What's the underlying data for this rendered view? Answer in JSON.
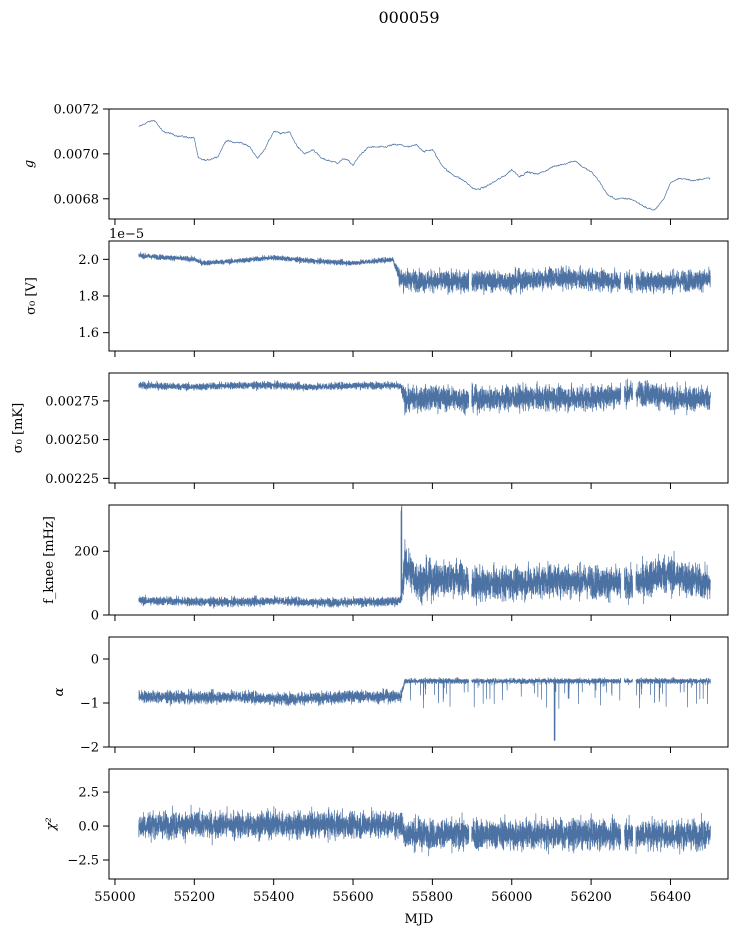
{
  "figure": {
    "title": "000059",
    "shared_xlabel": "MJD"
  },
  "chart_data": [
    {
      "type": "line",
      "id": "gain",
      "ylabel": "g",
      "offset_text": "",
      "ylim": [
        0.00671,
        0.0072
      ],
      "yticks": [
        0.0068,
        0.007,
        0.0072
      ],
      "ytick_labels": [
        "0.0068",
        "0.0070",
        "0.0072"
      ],
      "x": [
        55060,
        55080,
        55100,
        55120,
        55160,
        55200,
        55210,
        55230,
        55260,
        55280,
        55300,
        55320,
        55340,
        55360,
        55380,
        55400,
        55420,
        55440,
        55460,
        55480,
        55500,
        55520,
        55540,
        55560,
        55580,
        55600,
        55620,
        55640,
        55660,
        55680,
        55700,
        55720,
        55740,
        55760,
        55780,
        55800,
        55820,
        55840,
        55860,
        55880,
        55900,
        55910,
        55930,
        55960,
        55980,
        56000,
        56020,
        56040,
        56060,
        56080,
        56100,
        56120,
        56140,
        56160,
        56180,
        56200,
        56220,
        56240,
        56260,
        56280,
        56300,
        56320,
        56340,
        56360,
        56380,
        56400,
        56420,
        56440,
        56460,
        56480,
        56500
      ],
      "y": [
        0.00712,
        0.00714,
        0.00715,
        0.0071,
        0.00708,
        0.00707,
        0.00698,
        0.00697,
        0.00699,
        0.00706,
        0.00705,
        0.00705,
        0.00703,
        0.00698,
        0.00703,
        0.0071,
        0.00709,
        0.0071,
        0.00703,
        0.007,
        0.00702,
        0.00698,
        0.00697,
        0.00696,
        0.00698,
        0.00695,
        0.007,
        0.00703,
        0.00703,
        0.00703,
        0.00704,
        0.00704,
        0.00703,
        0.00704,
        0.00701,
        0.00702,
        0.00696,
        0.00692,
        0.0069,
        0.00688,
        0.00685,
        0.00684,
        0.00685,
        0.00688,
        0.0069,
        0.00693,
        0.0069,
        0.00692,
        0.00691,
        0.00692,
        0.00694,
        0.00695,
        0.00696,
        0.00697,
        0.00694,
        0.00692,
        0.00688,
        0.00682,
        0.0068,
        0.0068,
        0.0068,
        0.00678,
        0.00676,
        0.00675,
        0.00679,
        0.00687,
        0.00689,
        0.00689,
        0.00688,
        0.00689,
        0.00689
      ],
      "noise": 4e-06,
      "gaps": []
    },
    {
      "type": "line",
      "id": "sigma0-V",
      "ylabel": "σ₀ [V]",
      "offset_text": "1e−5",
      "ylim": [
        1.5,
        2.1
      ],
      "yticks": [
        1.6,
        1.8,
        2.0
      ],
      "ytick_labels": [
        "1.6",
        "1.8",
        "2.0"
      ],
      "x": [
        55060,
        55200,
        55220,
        55300,
        55400,
        55500,
        55600,
        55700,
        55720,
        55730,
        55800,
        55900,
        56000,
        56100,
        56200,
        56300,
        56400,
        56500
      ],
      "y": [
        2.02,
        2.0,
        1.98,
        1.99,
        2.01,
        1.99,
        1.98,
        2.0,
        1.89,
        1.89,
        1.88,
        1.88,
        1.88,
        1.9,
        1.89,
        1.88,
        1.88,
        1.89
      ],
      "noise": [
        0.012,
        0.012,
        0.012,
        0.012,
        0.012,
        0.012,
        0.012,
        0.012,
        0.05,
        0.05,
        0.05,
        0.05,
        0.05,
        0.05,
        0.05,
        0.05,
        0.05,
        0.05
      ],
      "gaps": [
        [
          55892,
          55898
        ],
        [
          56275,
          56283
        ],
        [
          56305,
          56312
        ]
      ]
    },
    {
      "type": "line",
      "id": "sigma0-mK",
      "ylabel": "σ₀ [mK]",
      "offset_text": "",
      "ylim": [
        0.00222,
        0.00293
      ],
      "yticks": [
        0.00225,
        0.0025,
        0.00275
      ],
      "ytick_labels": [
        "0.00225",
        "0.00250",
        "0.00275"
      ],
      "x": [
        55060,
        55200,
        55300,
        55400,
        55500,
        55600,
        55700,
        55720,
        55730,
        55800,
        55900,
        56000,
        56100,
        56200,
        56300,
        56350,
        56400,
        56500
      ],
      "y": [
        0.00285,
        0.00284,
        0.00285,
        0.00285,
        0.00284,
        0.00285,
        0.00285,
        0.00284,
        0.00276,
        0.00277,
        0.00276,
        0.00277,
        0.00277,
        0.00277,
        0.0028,
        0.0028,
        0.00276,
        0.00277
      ],
      "noise": [
        2e-05,
        2e-05,
        2e-05,
        2e-05,
        2e-05,
        2e-05,
        2e-05,
        2e-05,
        7e-05,
        7e-05,
        7e-05,
        7e-05,
        7e-05,
        7e-05,
        7e-05,
        7e-05,
        7e-05,
        7e-05
      ],
      "gaps": [
        [
          55892,
          55898
        ],
        [
          56275,
          56283
        ],
        [
          56305,
          56312
        ]
      ]
    },
    {
      "type": "line",
      "id": "fknee",
      "ylabel": "f_knee [mHz]",
      "offset_text": "",
      "ylim": [
        0,
        345
      ],
      "yticks": [
        0,
        200
      ],
      "ytick_labels": [
        "0",
        "200"
      ],
      "x": [
        55060,
        55200,
        55300,
        55400,
        55500,
        55600,
        55700,
        55720,
        55730,
        55760,
        55800,
        55860,
        55900,
        56000,
        56100,
        56200,
        56300,
        56380,
        56420,
        56500
      ],
      "y": [
        45,
        42,
        40,
        45,
        40,
        40,
        42,
        45,
        160,
        110,
        110,
        120,
        95,
        100,
        110,
        105,
        95,
        130,
        120,
        95
      ],
      "noise": [
        12,
        12,
        12,
        12,
        12,
        12,
        12,
        12,
        60,
        55,
        50,
        50,
        45,
        45,
        45,
        45,
        45,
        55,
        50,
        45
      ],
      "gaps": [
        [
          55892,
          55898
        ],
        [
          56275,
          56283
        ],
        [
          56305,
          56312
        ]
      ]
    },
    {
      "type": "line",
      "id": "alpha",
      "ylabel": "α",
      "offset_text": "",
      "ylim": [
        -2,
        0.5
      ],
      "yticks": [
        -2,
        -1,
        0
      ],
      "ytick_labels": [
        "−2",
        "−1",
        "0"
      ],
      "x": [
        55060,
        55200,
        55300,
        55400,
        55500,
        55600,
        55700,
        55720,
        55730,
        55800,
        55900,
        56000,
        56100,
        56200,
        56300,
        56400,
        56500
      ],
      "y": [
        -0.85,
        -0.88,
        -0.85,
        -0.9,
        -0.9,
        -0.85,
        -0.85,
        -0.85,
        -0.5,
        -0.5,
        -0.5,
        -0.5,
        -0.5,
        -0.5,
        -0.5,
        -0.5,
        -0.5
      ],
      "noise": [
        0.12,
        0.12,
        0.12,
        0.12,
        0.12,
        0.12,
        0.12,
        0.12,
        0.05,
        0.05,
        0.05,
        0.05,
        0.05,
        0.05,
        0.05,
        0.05,
        0.05
      ],
      "gaps": [
        [
          55892,
          55898
        ],
        [
          56275,
          56283
        ],
        [
          56305,
          56312
        ]
      ]
    },
    {
      "type": "line",
      "id": "chi2",
      "ylabel": "χ²",
      "offset_text": "",
      "ylim": [
        -3.9,
        4.2
      ],
      "yticks": [
        -2.5,
        0.0,
        2.5
      ],
      "ytick_labels": [
        "−2.5",
        "0.0",
        "2.5"
      ],
      "x": [
        55060,
        55200,
        55400,
        55600,
        55720,
        55730,
        55800,
        55900,
        56000,
        56100,
        56200,
        56300,
        56400,
        56500
      ],
      "y": [
        0.1,
        0.1,
        0.1,
        0.1,
        0.1,
        -0.6,
        -0.6,
        -0.6,
        -0.6,
        -0.6,
        -0.6,
        -0.6,
        -0.6,
        -0.6
      ],
      "noise": [
        0.85,
        0.85,
        0.85,
        0.85,
        0.85,
        0.95,
        0.95,
        0.95,
        0.95,
        0.95,
        0.95,
        0.95,
        0.95,
        0.95
      ],
      "gaps": [
        [
          55892,
          55898
        ],
        [
          56275,
          56283
        ],
        [
          56305,
          56312
        ]
      ]
    }
  ],
  "xaxis": {
    "xlim": [
      54985,
      56545
    ],
    "ticks": [
      55000,
      55200,
      55400,
      55600,
      55800,
      56000,
      56200,
      56400
    ],
    "tick_labels": [
      "55000",
      "55200",
      "55400",
      "55600",
      "55800",
      "56000",
      "56200",
      "56400"
    ]
  },
  "style": {
    "line_color": "#4c72a4",
    "frame_color": "#000000"
  }
}
